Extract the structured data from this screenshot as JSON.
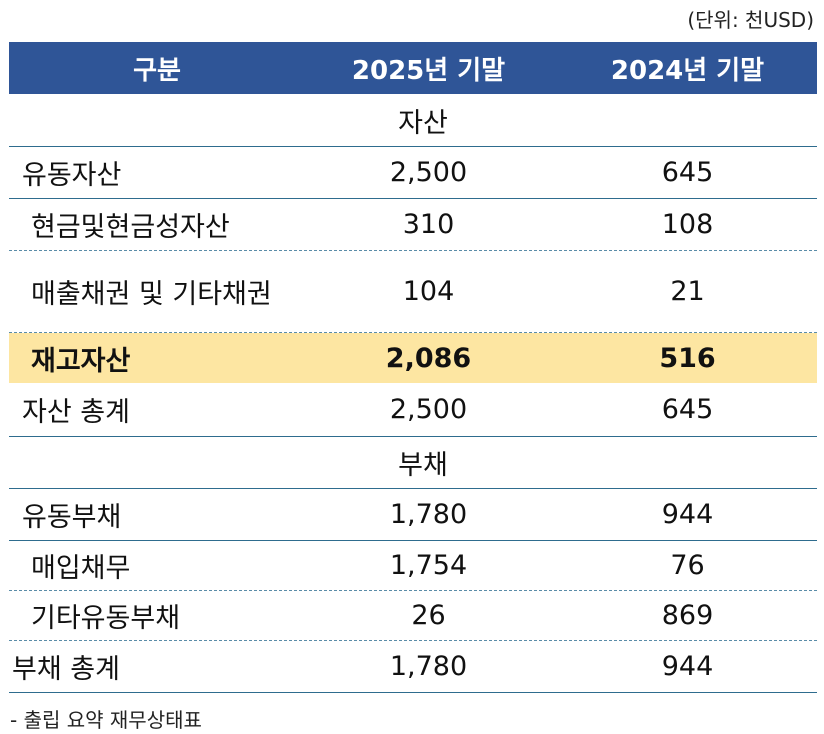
{
  "unit_note": "(단위: 천USD)",
  "header": {
    "col1": "구분",
    "col2": "2025년 기말",
    "col3": "2024년 기말"
  },
  "assets": {
    "section_label": "자산",
    "rows": [
      {
        "label": "유동자산",
        "y2025": "2,500",
        "y2024": "645"
      },
      {
        "label": "현금및현금성자산",
        "y2025": "310",
        "y2024": "108"
      },
      {
        "label": "매출채권 및 기타채권",
        "y2025": "104",
        "y2024": "21"
      },
      {
        "label": "재고자산",
        "y2025": "2,086",
        "y2024": "516"
      },
      {
        "label": "자산 총계",
        "y2025": "2,500",
        "y2024": "645"
      }
    ]
  },
  "liabilities": {
    "section_label": "부채",
    "rows": [
      {
        "label": "유동부채",
        "y2025": "1,780",
        "y2024": "944"
      },
      {
        "label": "매입채무",
        "y2025": "1,754",
        "y2024": "76"
      },
      {
        "label": "기타유동부채",
        "y2025": "26",
        "y2024": "869"
      },
      {
        "label": "부채 총계",
        "y2025": "1,780",
        "y2024": "944"
      }
    ]
  },
  "highlight_color": "#fde6a2",
  "header_color": "#2f5597",
  "footnote": "- 출립 요약 재무상태표"
}
